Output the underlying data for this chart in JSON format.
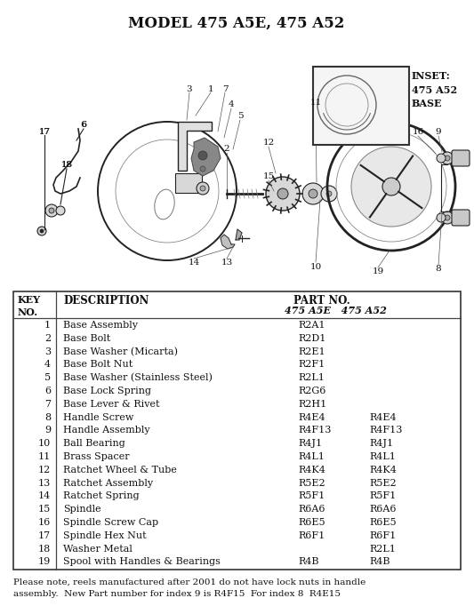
{
  "title": "MODEL 475 A5E, 475 A52",
  "bg_color": "#ffffff",
  "parts": [
    {
      "key": "1",
      "desc": "Base Assembly",
      "p1": "R2A1",
      "p2": ""
    },
    {
      "key": "2",
      "desc": "Base Bolt",
      "p1": "R2D1",
      "p2": ""
    },
    {
      "key": "3",
      "desc": "Base Washer (Micarta)",
      "p1": "R2E1",
      "p2": ""
    },
    {
      "key": "4",
      "desc": "Base Bolt Nut",
      "p1": "R2F1",
      "p2": ""
    },
    {
      "key": "5",
      "desc": "Base Washer (Stainless Steel)",
      "p1": "R2L1",
      "p2": ""
    },
    {
      "key": "6",
      "desc": "Base Lock Spring",
      "p1": "R2G6",
      "p2": ""
    },
    {
      "key": "7",
      "desc": "Base Lever & Rivet",
      "p1": "R2H1",
      "p2": ""
    },
    {
      "key": "8",
      "desc": "Handle Screw",
      "p1": "R4E4",
      "p2": "R4E4"
    },
    {
      "key": "9",
      "desc": "Handle Assembly",
      "p1": "R4F13",
      "p2": "R4F13"
    },
    {
      "key": "10",
      "desc": "Ball Bearing",
      "p1": "R4J1",
      "p2": "R4J1"
    },
    {
      "key": "11",
      "desc": "Brass Spacer",
      "p1": "R4L1",
      "p2": "R4L1"
    },
    {
      "key": "12",
      "desc": "Ratchet Wheel & Tube",
      "p1": "R4K4",
      "p2": "R4K4"
    },
    {
      "key": "13",
      "desc": "Ratchet Assembly",
      "p1": "R5E2",
      "p2": "R5E2"
    },
    {
      "key": "14",
      "desc": "Ratchet Spring",
      "p1": "R5F1",
      "p2": "R5F1"
    },
    {
      "key": "15",
      "desc": "Spindle",
      "p1": "R6A6",
      "p2": "R6A6"
    },
    {
      "key": "16",
      "desc": "Spindle Screw Cap",
      "p1": "R6E5",
      "p2": "R6E5"
    },
    {
      "key": "17",
      "desc": "Spindle Hex Nut",
      "p1": "R6F1",
      "p2": "R6F1"
    },
    {
      "key": "18",
      "desc": "Washer Metal",
      "p1": "",
      "p2": "R2L1"
    },
    {
      "key": "19",
      "desc": "Spool with Handles & Bearings",
      "p1": "R4B",
      "p2": "R4B"
    }
  ],
  "footnote1": "Please note, reels manufactured after 2001 do not have lock nuts in handle",
  "footnote2": "assembly.  New Part number for index 9 is R4F15  For index 8  R4E15",
  "inset_label": "INSET:\n475 A52\nBASE"
}
